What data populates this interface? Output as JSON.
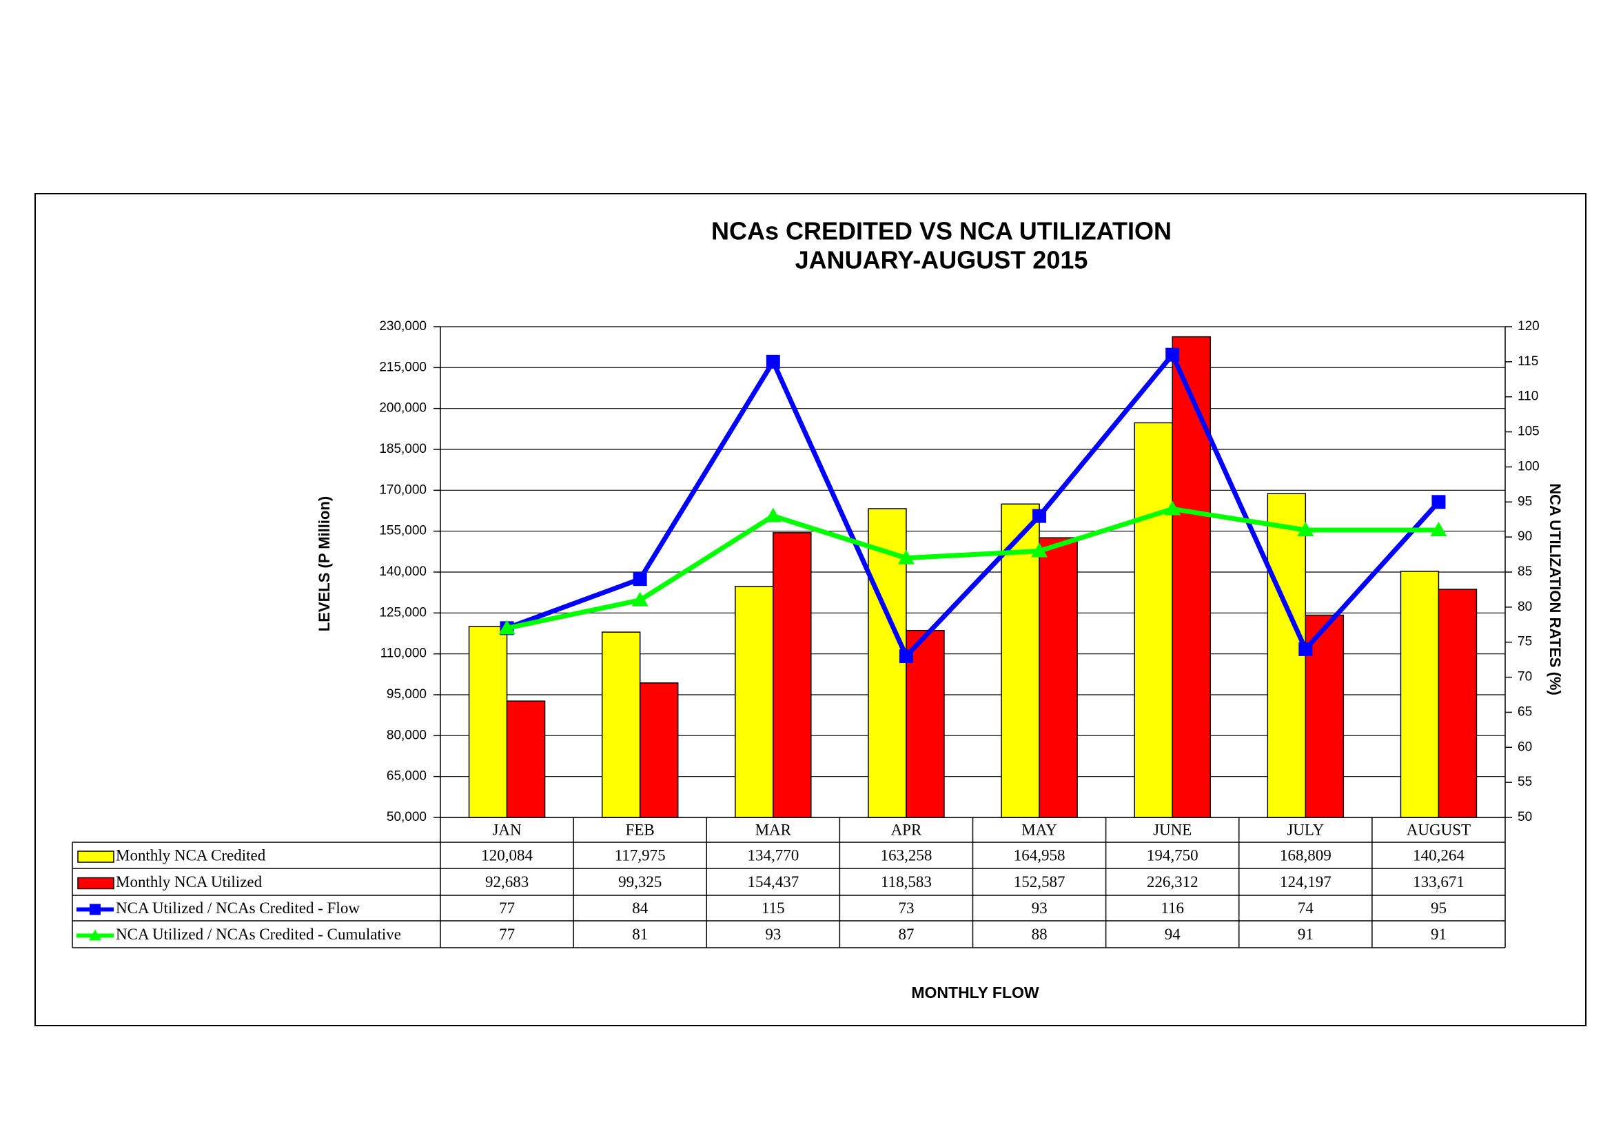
{
  "chart_data": {
    "type": "bar",
    "title": [
      "NCAs CREDITED VS NCA UTILIZATION",
      "JANUARY-AUGUST 2015"
    ],
    "y_label": "LEVELS (P Million)",
    "y2_label": "NCA UTILIZATION RATES (%)",
    "x_label": "MONTHLY FLOW",
    "categories": [
      "JAN",
      "FEB",
      "MAR",
      "APR",
      "MAY",
      "JUNE",
      "JULY",
      "AUGUST"
    ],
    "series": [
      {
        "name": "Monthly NCA Credited",
        "color": "#ffff00",
        "values": [
          120084,
          117975,
          134770,
          163258,
          164958,
          194750,
          168809,
          140264
        ],
        "value_labels": [
          "120,084",
          "117,975",
          "134,770",
          "163,258",
          "164,958",
          "194,750",
          "168,809",
          "140,264"
        ]
      },
      {
        "name": "Monthly NCA Utilized",
        "color": "#ff0000",
        "values": [
          92683,
          99325,
          154437,
          118583,
          152587,
          226312,
          124197,
          133671
        ],
        "value_labels": [
          "92,683",
          "99,325",
          "154,437",
          "118,583",
          "152,587",
          "226,312",
          "124,197",
          "133,671"
        ]
      },
      {
        "name": "NCA Utilized / NCAs Credited - Flow",
        "color": "#0000ff",
        "type": "line",
        "marker": "square",
        "axis": "y2",
        "values": [
          77,
          84,
          115,
          73,
          93,
          116,
          74,
          95
        ]
      },
      {
        "name": "NCA Utilized / NCAs Credited - Cumulative",
        "color": "#00ff00",
        "type": "line",
        "marker": "triangle",
        "axis": "y2",
        "values": [
          77,
          81,
          93,
          87,
          88,
          94,
          91,
          91
        ]
      }
    ],
    "ylim": [
      50000,
      230000
    ],
    "yticks": [
      {
        "value": 50000,
        "label": "50,000"
      },
      {
        "value": 65000,
        "label": "65,000"
      },
      {
        "value": 80000,
        "label": "80,000"
      },
      {
        "value": 95000,
        "label": "95,000"
      },
      {
        "value": 110000,
        "label": "110,000"
      },
      {
        "value": 125000,
        "label": "125,000"
      },
      {
        "value": 140000,
        "label": "140,000"
      },
      {
        "value": 155000,
        "label": "155,000"
      },
      {
        "value": 170000,
        "label": "170,000"
      },
      {
        "value": 185000,
        "label": "185,000"
      },
      {
        "value": 200000,
        "label": "200,000"
      },
      {
        "value": 215000,
        "label": "215,000"
      },
      {
        "value": 230000,
        "label": "230,000"
      }
    ],
    "y2lim": [
      50,
      120
    ],
    "y2ticks": [
      50,
      55,
      60,
      65,
      70,
      75,
      80,
      85,
      90,
      95,
      100,
      105,
      110,
      115,
      120
    ],
    "grid": true
  }
}
